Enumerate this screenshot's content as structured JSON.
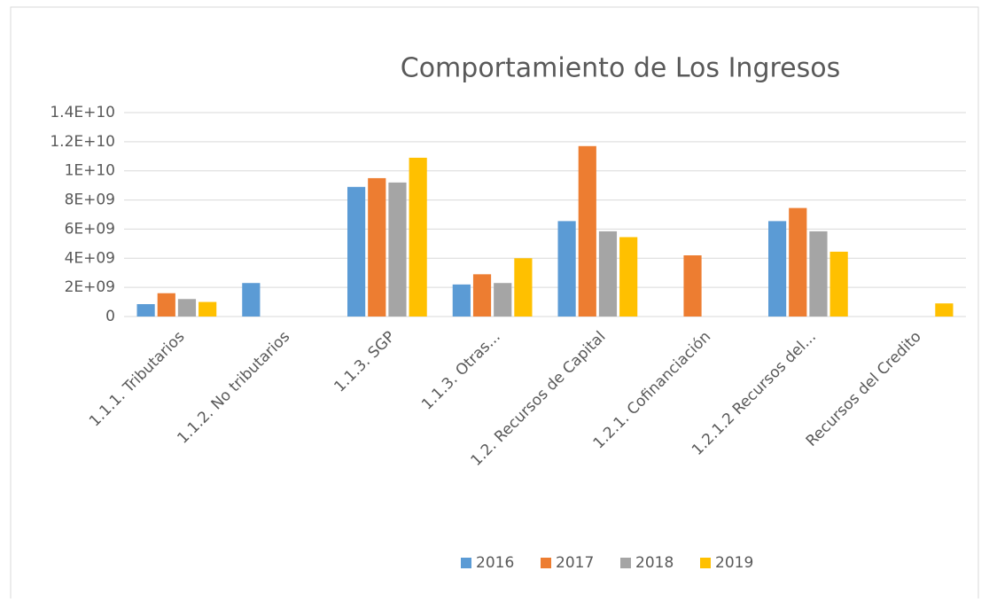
{
  "chart_data": {
    "type": "bar",
    "title": "Comportamiento de Los Ingresos",
    "categories": [
      "1.1.1. Tributarios",
      "1.1.2. No tributarios",
      "1.1.3. SGP",
      "1.1.3. Otras...",
      "1.2. Recursos de Capital",
      "1.2.1. Cofinanciación",
      "1.2.1.2 Recursos del...",
      "Recursos del Credito"
    ],
    "series": [
      {
        "name": "2016",
        "color": "#5b9bd5",
        "values": [
          850000000,
          2300000000,
          8900000000,
          2200000000,
          6550000000,
          null,
          6550000000,
          null
        ]
      },
      {
        "name": "2017",
        "color": "#ed7d31",
        "values": [
          1600000000,
          null,
          9500000000,
          2900000000,
          11700000000,
          4200000000,
          7450000000,
          null
        ]
      },
      {
        "name": "2018",
        "color": "#a5a5a5",
        "values": [
          1200000000,
          null,
          9200000000,
          2300000000,
          5850000000,
          null,
          5850000000,
          null
        ]
      },
      {
        "name": "2019",
        "color": "#ffc000",
        "values": [
          1000000000,
          null,
          10900000000,
          4000000000,
          5450000000,
          null,
          4450000000,
          900000000
        ]
      }
    ],
    "ylim": [
      0,
      14000000000
    ],
    "yticks": [
      0,
      {
        "value": 2000000000,
        "label": "2E+09"
      },
      {
        "value": 4000000000,
        "label": "4E+09"
      },
      {
        "value": 6000000000,
        "label": "6E+09"
      },
      {
        "value": 8000000000,
        "label": "8E+09"
      },
      {
        "value": 10000000000,
        "label": "1E+10"
      },
      {
        "value": 12000000000,
        "label": "1.2E+10"
      },
      {
        "value": 14000000000,
        "label": "1.4E+10"
      }
    ],
    "grid": true,
    "legend": "bottom"
  }
}
